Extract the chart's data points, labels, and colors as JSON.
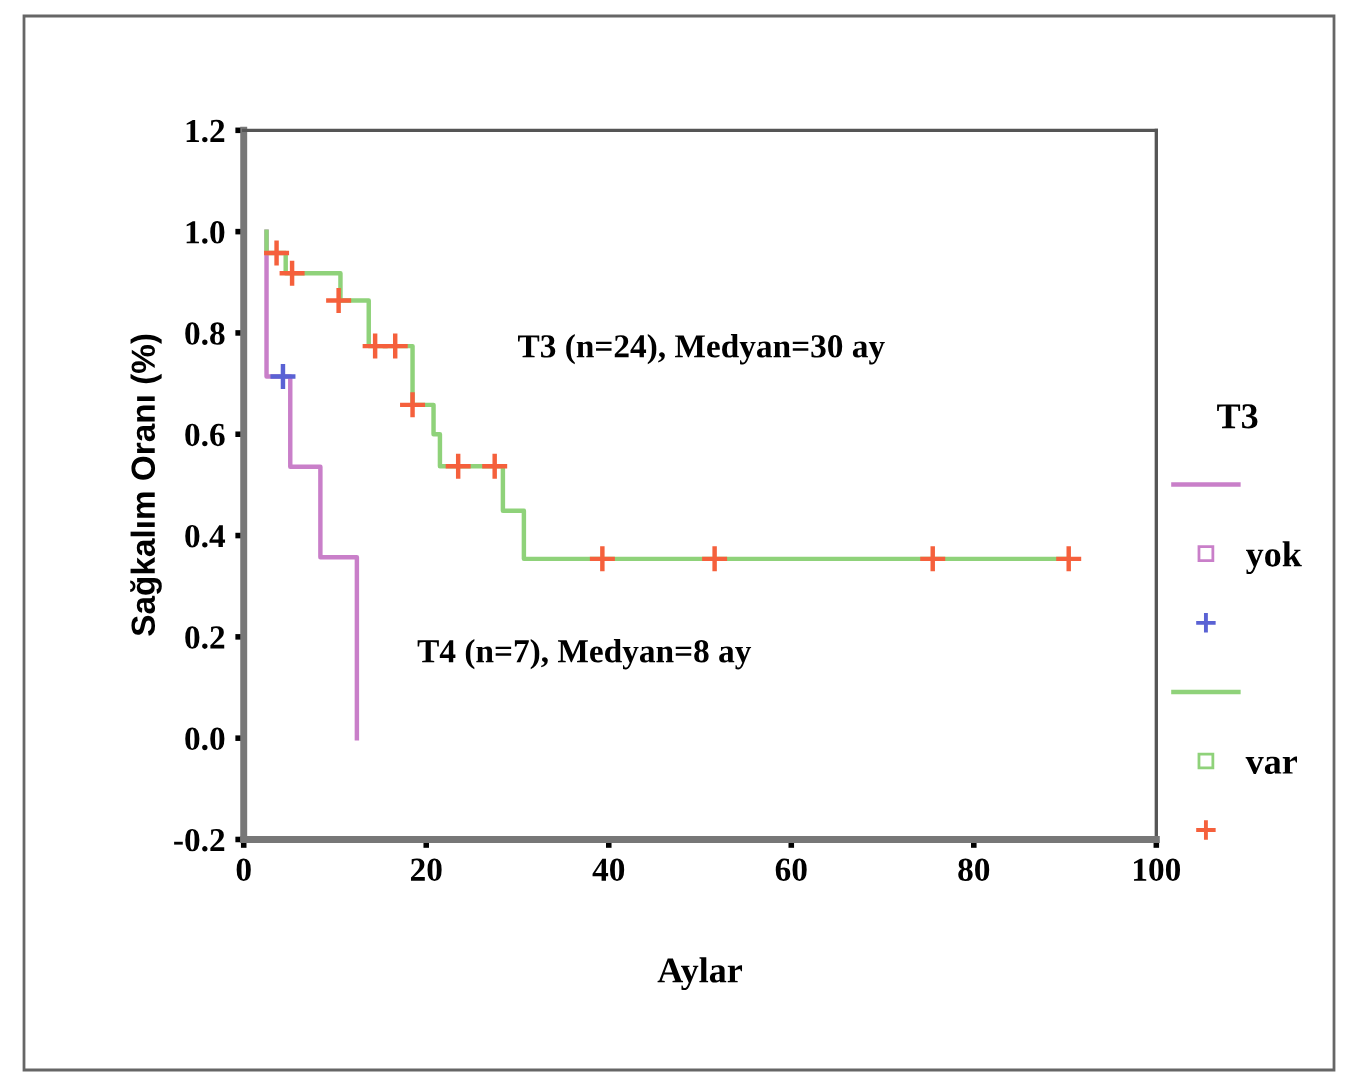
{
  "chart_data": {
    "type": "step",
    "xlabel": "Aylar",
    "ylabel": "Sağkalım Oranı (%)",
    "legend_title": "T3",
    "legend": "right",
    "xlim": [
      0,
      100
    ],
    "xticks": [
      0,
      20,
      40,
      60,
      80,
      100
    ],
    "ylim": [
      -0.2,
      1.2
    ],
    "yticks": [
      {
        "value": -0.2,
        "label": "-0.2"
      },
      {
        "value": 0.0,
        "label": "0.0"
      },
      {
        "value": 0.2,
        "label": "0.2"
      },
      {
        "value": 0.4,
        "label": "0.4"
      },
      {
        "value": 0.6,
        "label": "0.6"
      },
      {
        "value": 0.8,
        "label": "0.8"
      },
      {
        "value": 1.0,
        "label": "1.0"
      },
      {
        "value": 1.2,
        "label": "1.2"
      }
    ],
    "grid": false,
    "annotations": [
      "T3 (n=24), Medyan=30 ay",
      "T4 (n=7), Medyan=8 ay"
    ],
    "series": [
      {
        "name": "yok",
        "color": "#c97fc9",
        "x": [
          2.5,
          2.5,
          5.1,
          8.4,
          12.4
        ],
        "values": [
          1.0,
          0.714,
          0.536,
          0.357,
          0.0
        ]
      },
      {
        "type": "scatter",
        "marker": "cross",
        "color": "#5a62d4",
        "x": [
          4.3
        ],
        "values": [
          0.714
        ]
      },
      {
        "name": "var",
        "color": "#8fd27a",
        "x": [
          2.5,
          2.5,
          4.6,
          10.6,
          13.7,
          18.5,
          20.8,
          21.5,
          28.4,
          30.7,
          90.4
        ],
        "values": [
          1.0,
          0.958,
          0.918,
          0.864,
          0.774,
          0.658,
          0.6,
          0.537,
          0.449,
          0.354,
          0.354
        ]
      },
      {
        "type": "scatter",
        "marker": "cross",
        "color": "#f5603c",
        "x": [
          3.6,
          5.3,
          10.4,
          14.4,
          16.6,
          18.5,
          23.5,
          27.5,
          39.3,
          51.6,
          75.5,
          90.4
        ],
        "values": [
          0.958,
          0.918,
          0.864,
          0.774,
          0.774,
          0.658,
          0.537,
          0.537,
          0.354,
          0.354,
          0.354,
          0.354
        ]
      }
    ]
  }
}
